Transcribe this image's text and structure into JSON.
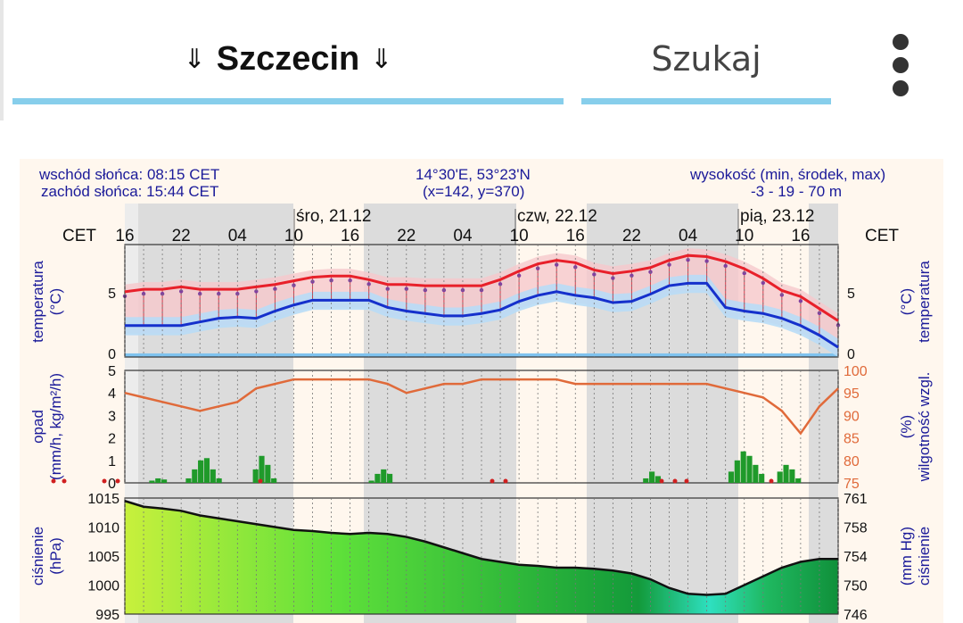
{
  "header": {
    "city_arrow_left": "⇓",
    "city": "Szczecin",
    "city_arrow_right": "⇓",
    "search": "Szukaj",
    "menu_icon": "more-vert-icon",
    "accent_color": "#87ceeb"
  },
  "meteogram": {
    "sunrise": "wschód słońca: 08:15 CET",
    "sunset": "zachód słońca: 15:44 CET",
    "coords": "14°30'E, 53°23'N",
    "grid": "(x=142,  y=370)",
    "elevation_label": "wysokość (min, środek, max)",
    "elevation_values": "-3 - 19 - 70 m",
    "tz_left": "CET",
    "tz_right": "CET",
    "days": [
      "śro, 21.12",
      "czw, 22.12",
      "pią, 23.12"
    ],
    "hour_ticks": [
      "16",
      "22",
      "04",
      "10",
      "16",
      "22",
      "04",
      "10",
      "16",
      "22",
      "04",
      "10",
      "16"
    ],
    "temp_label_left_1": "temperatura",
    "temp_label_left_2": "(°C)",
    "temp_label_right_1": "(°C)",
    "temp_label_right_2": "temperatura",
    "temp_ticks": [
      "5",
      "0"
    ],
    "precip_label_1": "opad",
    "precip_label_2": "(mm/h, kg/m²/h)",
    "precip_ticks": [
      "5",
      "4",
      "3",
      "2",
      "1",
      "0"
    ],
    "humid_label_1": "(%)",
    "humid_label_2": "wilgotność wzgl.",
    "humid_ticks": [
      "100",
      "95",
      "90",
      "85",
      "80",
      "75"
    ],
    "press_label_1": "ciśnienie",
    "press_label_2": "(hPa)",
    "press_label_r1": "(mm Hg)",
    "press_label_r2": "ciśnienie",
    "press_ticks_hpa": [
      "1015",
      "1010",
      "1005",
      "1000",
      "995"
    ],
    "press_ticks_mmhg": [
      "761",
      "758",
      "754",
      "750",
      "746"
    ],
    "colors": {
      "temp_max": "#e8202a",
      "temp_min": "#1530cc",
      "humidity": "#e06a3a",
      "precip": "#1f9a2a",
      "label": "#1a1a99"
    }
  },
  "chart_data": [
    {
      "type": "line",
      "title": "",
      "xlabel": "",
      "ylabel": "temperatura (°C)",
      "x": [
        "16",
        "18",
        "20",
        "22",
        "00",
        "02",
        "04",
        "06",
        "08",
        "10",
        "12",
        "14",
        "16",
        "18",
        "20",
        "22",
        "00",
        "02",
        "04",
        "06",
        "08",
        "10",
        "12",
        "14",
        "16",
        "18",
        "20",
        "22",
        "00",
        "02",
        "04",
        "06",
        "08",
        "10",
        "12",
        "14",
        "16",
        "18",
        "20"
      ],
      "series": [
        {
          "name": "",
          "values": [
            5.1,
            5.3,
            5.3,
            5.5,
            5.3,
            5.3,
            5.3,
            5.5,
            5.7,
            6.0,
            6.3,
            6.4,
            6.4,
            6.1,
            5.7,
            5.7,
            5.6,
            5.6,
            5.6,
            5.6,
            6.1,
            6.8,
            7.4,
            7.7,
            7.5,
            6.9,
            6.6,
            6.8,
            7.1,
            7.7,
            8.1,
            8.0,
            7.6,
            7.0,
            6.2,
            5.2,
            4.7,
            3.7,
            2.7
          ]
        },
        {
          "name": "",
          "values": [
            2.3,
            2.3,
            2.3,
            2.3,
            2.6,
            2.9,
            3.0,
            2.9,
            3.5,
            4.0,
            4.4,
            4.4,
            4.4,
            4.4,
            3.8,
            3.5,
            3.3,
            3.1,
            3.1,
            3.3,
            3.6,
            4.3,
            4.8,
            5.1,
            4.8,
            4.6,
            4.2,
            4.3,
            4.9,
            5.6,
            5.8,
            5.8,
            3.8,
            3.5,
            3.3,
            2.9,
            2.3,
            1.5,
            0.5
          ]
        }
      ],
      "ylim": [
        -0.3,
        9
      ]
    },
    {
      "type": "bar",
      "ylabel": "opad (mm/h, kg/m²/h)",
      "ylim": [
        0,
        5
      ],
      "values": [
        0,
        0,
        0,
        0,
        0.1,
        0.2,
        0.15,
        0,
        0,
        0,
        0.2,
        0.6,
        1.0,
        1.1,
        0.6,
        0.2,
        0,
        0,
        0,
        0,
        0,
        0.6,
        1.2,
        0.8,
        0.2,
        0,
        0,
        0,
        0,
        0,
        0,
        0,
        0,
        0,
        0,
        0,
        0,
        0,
        0,
        0,
        0.1,
        0.4,
        0.6,
        0.4,
        0,
        0,
        0,
        0,
        0,
        0,
        0,
        0,
        0,
        0,
        0,
        0,
        0,
        0,
        0,
        0,
        0,
        0,
        0,
        0,
        0,
        0,
        0,
        0,
        0,
        0,
        0,
        0,
        0,
        0,
        0,
        0,
        0,
        0,
        0,
        0,
        0,
        0,
        0,
        0,
        0,
        0.2,
        0.5,
        0.3,
        0,
        0,
        0,
        0,
        0,
        0,
        0,
        0,
        0,
        0,
        0,
        0.5,
        1.0,
        1.4,
        1.2,
        0.8,
        0.4,
        0,
        0,
        0.5,
        0.8,
        0.6,
        0.2,
        0,
        0,
        0,
        0,
        0,
        0
      ]
    },
    {
      "type": "line",
      "ylabel": "wilgotność wzgl. (%)",
      "ylim": [
        75,
        100
      ],
      "x": [
        "16",
        "18",
        "20",
        "22",
        "00",
        "02",
        "04",
        "06",
        "08",
        "10",
        "12",
        "14",
        "16",
        "18",
        "20",
        "22",
        "00",
        "02",
        "04",
        "06",
        "08",
        "10",
        "12",
        "14",
        "16",
        "18",
        "20",
        "22",
        "00",
        "02",
        "04",
        "06",
        "08",
        "10",
        "12",
        "14",
        "16",
        "18",
        "20"
      ],
      "series": [
        {
          "name": "",
          "values": [
            95,
            94,
            93,
            92,
            91,
            92,
            93,
            96,
            97,
            98,
            98,
            98,
            98,
            98,
            97,
            95,
            96,
            97,
            97,
            98,
            98,
            98,
            98,
            98,
            97,
            97,
            97,
            97,
            97,
            97,
            97,
            97,
            96,
            95,
            94,
            91,
            86,
            92,
            96
          ]
        }
      ]
    },
    {
      "type": "area",
      "ylabel": "ciśnienie (hPa)",
      "ylim": [
        995,
        1015
      ],
      "x": [
        "16",
        "18",
        "20",
        "22",
        "00",
        "02",
        "04",
        "06",
        "08",
        "10",
        "12",
        "14",
        "16",
        "18",
        "20",
        "22",
        "00",
        "02",
        "04",
        "06",
        "08",
        "10",
        "12",
        "14",
        "16",
        "18",
        "20",
        "22",
        "00",
        "02",
        "04",
        "06",
        "08",
        "10",
        "12",
        "14",
        "16",
        "18",
        "20"
      ],
      "series": [
        {
          "name": "",
          "values": [
            1014.5,
            1013.5,
            1013.2,
            1012.8,
            1012.0,
            1011.5,
            1011.0,
            1010.5,
            1010.0,
            1009.5,
            1009.3,
            1009.0,
            1008.8,
            1009.0,
            1008.8,
            1008.3,
            1007.5,
            1006.5,
            1005.5,
            1004.5,
            1004.0,
            1003.5,
            1003.3,
            1003.0,
            1003.0,
            1002.8,
            1002.5,
            1002.0,
            1001.0,
            999.5,
            998.5,
            998.3,
            998.5,
            1000.0,
            1001.5,
            1003.0,
            1004.0,
            1004.5,
            1004.5
          ]
        }
      ]
    }
  ]
}
